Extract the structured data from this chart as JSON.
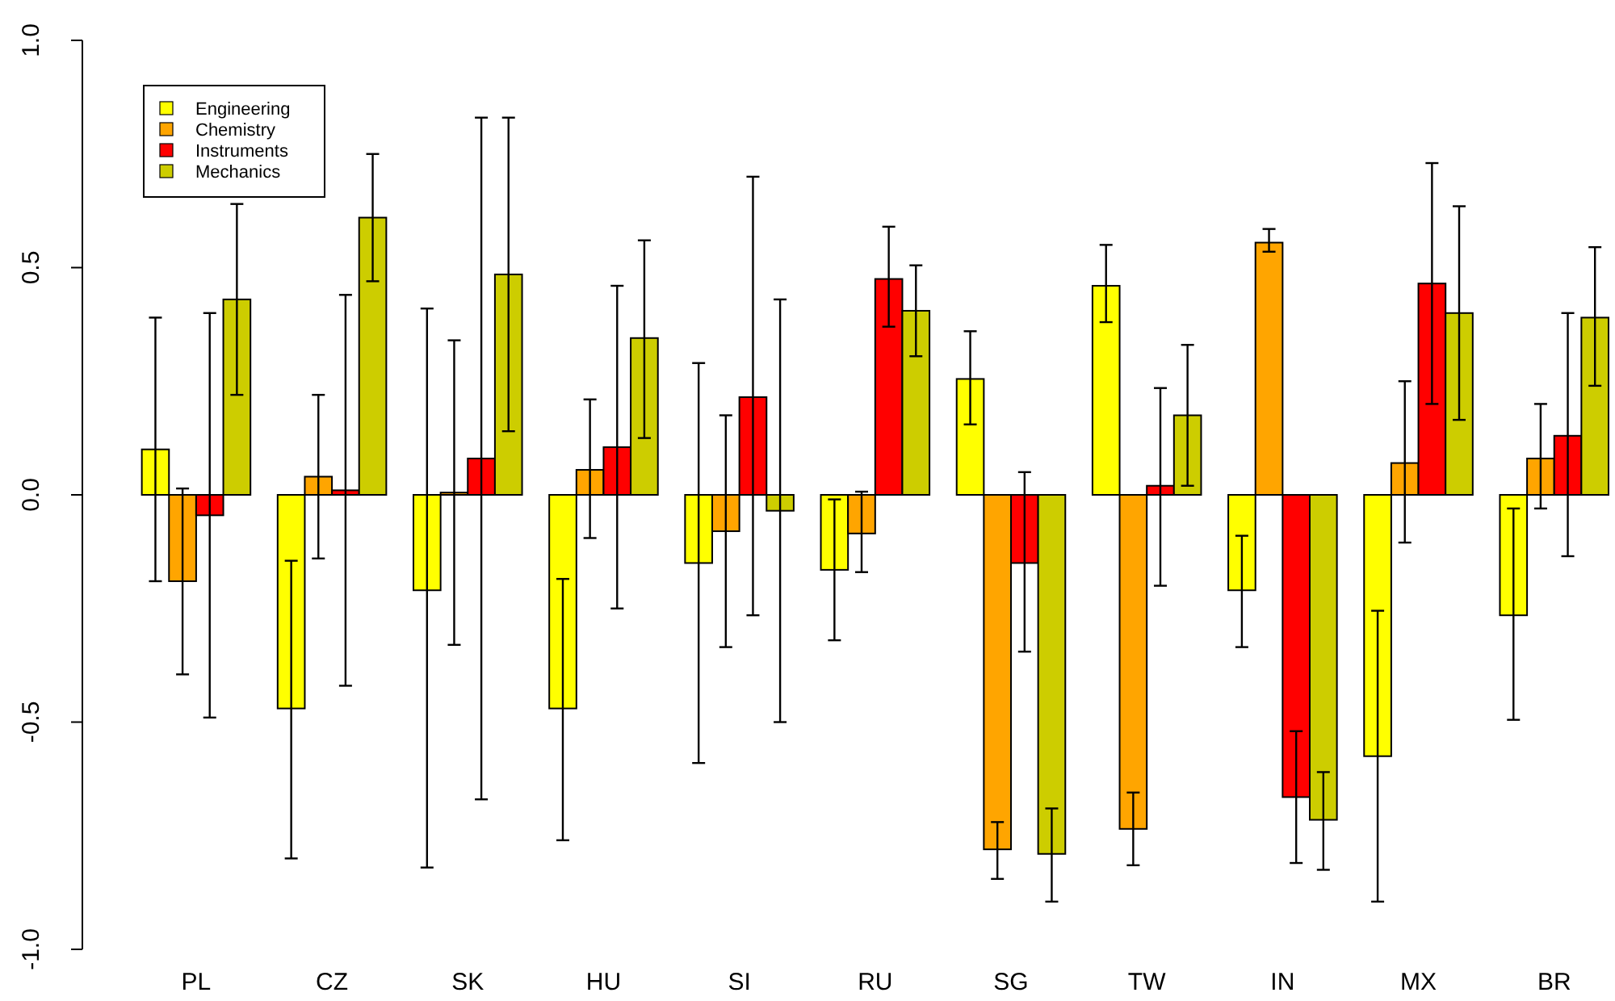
{
  "chart_data": {
    "type": "bar",
    "categories": [
      "PL",
      "CZ",
      "SK",
      "HU",
      "SI",
      "RU",
      "SG",
      "TW",
      "IN",
      "MX",
      "BR"
    ],
    "series": [
      {
        "name": "Engineering",
        "color": "#ffff00",
        "values": [
          0.1,
          -0.47,
          -0.21,
          -0.47,
          -0.15,
          -0.165,
          0.255,
          0.46,
          -0.21,
          -0.575,
          -0.265
        ],
        "errors": [
          [
            -0.19,
            0.39
          ],
          [
            -0.8,
            -0.145
          ],
          [
            -0.82,
            0.41
          ],
          [
            -0.76,
            -0.185
          ],
          [
            -0.59,
            0.29
          ],
          [
            -0.32,
            -0.01
          ],
          [
            0.155,
            0.36
          ],
          [
            0.38,
            0.55
          ],
          [
            -0.335,
            -0.09
          ],
          [
            -0.895,
            -0.255
          ],
          [
            -0.495,
            -0.03
          ]
        ]
      },
      {
        "name": "Chemistry",
        "color": "#ffa500",
        "values": [
          -0.19,
          0.04,
          0.005,
          0.055,
          -0.08,
          -0.085,
          -0.78,
          -0.735,
          0.555,
          0.07,
          0.08
        ],
        "errors": [
          [
            -0.395,
            0.014
          ],
          [
            -0.14,
            0.22
          ],
          [
            -0.33,
            0.34
          ],
          [
            -0.095,
            0.21
          ],
          [
            -0.335,
            0.175
          ],
          [
            -0.17,
            0.007
          ],
          [
            -0.845,
            -0.72
          ],
          [
            -0.815,
            -0.655
          ],
          [
            0.535,
            0.585
          ],
          [
            -0.105,
            0.25
          ],
          [
            -0.03,
            0.2
          ]
        ]
      },
      {
        "name": "Instruments",
        "color": "#ff0000",
        "values": [
          -0.045,
          0.01,
          0.08,
          0.105,
          0.215,
          0.475,
          -0.15,
          0.02,
          -0.665,
          0.465,
          0.13
        ],
        "errors": [
          [
            -0.49,
            0.4
          ],
          [
            -0.42,
            0.44
          ],
          [
            -0.67,
            0.83
          ],
          [
            -0.25,
            0.46
          ],
          [
            -0.265,
            0.7
          ],
          [
            0.37,
            0.59
          ],
          [
            -0.345,
            0.05
          ],
          [
            -0.2,
            0.235
          ],
          [
            -0.81,
            -0.52
          ],
          [
            0.2,
            0.73
          ],
          [
            -0.135,
            0.4
          ]
        ]
      },
      {
        "name": "Mechanics",
        "color": "#cdcd00",
        "values": [
          0.43,
          0.61,
          0.485,
          0.345,
          -0.035,
          0.405,
          -0.79,
          0.175,
          -0.715,
          0.4,
          0.39
        ],
        "errors": [
          [
            0.22,
            0.64
          ],
          [
            0.47,
            0.75
          ],
          [
            0.14,
            0.83
          ],
          [
            0.125,
            0.56
          ],
          [
            -0.5,
            0.43
          ],
          [
            0.305,
            0.505
          ],
          [
            -0.895,
            -0.69
          ],
          [
            0.02,
            0.33
          ],
          [
            -0.825,
            -0.61
          ],
          [
            0.165,
            0.635
          ],
          [
            0.24,
            0.545
          ]
        ]
      }
    ],
    "ylim": [
      -1,
      1
    ],
    "yticks": [
      {
        "value": -1,
        "label": "-1.0"
      },
      {
        "value": -0.5,
        "label": "-0.5"
      },
      {
        "value": 0,
        "label": "0.0"
      },
      {
        "value": 0.5,
        "label": "0.5"
      },
      {
        "value": 1,
        "label": "1.0"
      }
    ],
    "legend": "top left"
  }
}
